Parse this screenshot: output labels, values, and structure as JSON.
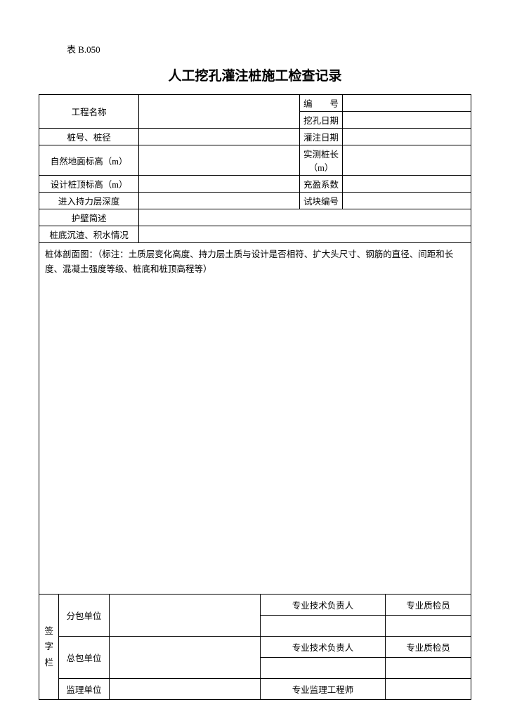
{
  "table_number": "表 B.050",
  "title": "人工挖孔灌注桩施工检查记录",
  "header": {
    "project_name_label": "工程名称",
    "pile_no_dia_label": "桩号、桩径",
    "ground_elev_label": "自然地面标高（m）",
    "design_top_elev_label": "设计桩顶标高（m）",
    "bearing_depth_label": "进入持力层深度",
    "wall_desc_label": "护壁简述",
    "sediment_label": "桩底沉渣、积水情况",
    "serial_label": "编　　号",
    "drill_date_label": "挖孔日期",
    "pour_date_label": "灌注日期",
    "measured_len_label": "实测桩长（m）",
    "fill_coef_label": "充盈系数",
    "block_no_label": "试块编号"
  },
  "body_label": "桩体剖面图：（标注：土质层变化高度、持力层土质与设计是否相符、扩大头尺寸、钢筋的直径、间距和长度、混凝土强度等级、桩底和桩顶高程等）",
  "sig": {
    "column_label": "签字栏",
    "sub_unit": "分包单位",
    "main_unit": "总包单位",
    "supervise_unit": "监理单位",
    "tech_lead": "专业技术负责人",
    "qc": "专业质检员",
    "supervise_eng": "专业监理工程师"
  }
}
